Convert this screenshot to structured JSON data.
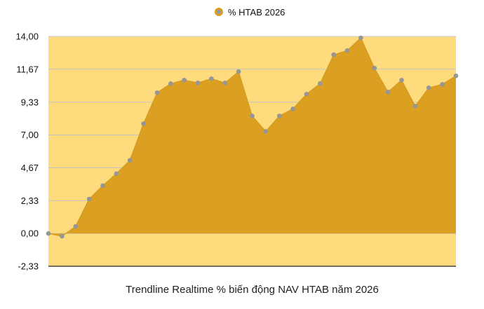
{
  "chart_data": {
    "type": "area",
    "title": "",
    "xlabel": "Trendline Realtime % biến động NAV HTAB năm 2026",
    "ylabel": "",
    "ylim": [
      -2.33,
      14.0
    ],
    "y_ticks": [
      "14,00",
      "11,67",
      "9,33",
      "7,00",
      "4,67",
      "2,33",
      "0,00",
      "-2,33"
    ],
    "y_tick_values": [
      14.0,
      11.67,
      9.33,
      7.0,
      4.67,
      2.33,
      0.0,
      -2.33
    ],
    "grid": true,
    "legend": {
      "position": "top-center"
    },
    "series": [
      {
        "name": "% HTAB 2026",
        "values": [
          0.0,
          -0.2,
          0.5,
          2.45,
          3.4,
          4.25,
          5.2,
          7.8,
          10.0,
          10.65,
          10.9,
          10.7,
          11.0,
          10.7,
          11.5,
          8.35,
          7.25,
          8.35,
          8.85,
          9.9,
          10.65,
          12.7,
          13.0,
          13.9,
          11.75,
          10.05,
          10.9,
          9.05,
          10.35,
          10.6,
          11.2
        ]
      }
    ],
    "colors": {
      "background_band": "#FEDB7C",
      "area_fill": "#DBA022",
      "area_line": "#D39A1F",
      "marker": "#969696",
      "grid": "#C4C4C4",
      "axis": "#222222"
    }
  }
}
